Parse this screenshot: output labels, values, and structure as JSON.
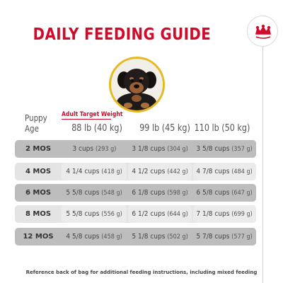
{
  "title": "DAILY FEEDING GUIDE",
  "logo": {
    "name": "royal-canin-crown-icon",
    "color": "#d10a2a"
  },
  "photo": {
    "name": "puppy-photo",
    "ring_color": "#e8b820"
  },
  "table": {
    "puppy_age_label_line1": "Puppy",
    "puppy_age_label_line2": "Age",
    "target_weight_label": "Adult Target Weight",
    "columns": [
      "88 lb (40 kg)",
      "99 lb (45 kg)",
      "110 lb (50 kg)"
    ],
    "rows": [
      {
        "age": "2 MOS",
        "cells": [
          {
            "main": "3 cups",
            "unit": "(293 g)"
          },
          {
            "main": "3 1/8 cups",
            "unit": "(304 g)"
          },
          {
            "main": "3 5/8 cups",
            "unit": "(357 g)"
          }
        ]
      },
      {
        "age": "4 MOS",
        "cells": [
          {
            "main": "4 1/4 cups",
            "unit": "(418 g)"
          },
          {
            "main": "4 1/2 cups",
            "unit": "(442 g)"
          },
          {
            "main": "4 7/8 cups",
            "unit": "(484 g)"
          }
        ]
      },
      {
        "age": "6 MOS",
        "cells": [
          {
            "main": "5 5/8 cups",
            "unit": "(548 g)"
          },
          {
            "main": "6 1/8 cups",
            "unit": "(598 g)"
          },
          {
            "main": "6 5/8 cups",
            "unit": "(647 g)"
          }
        ]
      },
      {
        "age": "8 MOS",
        "cells": [
          {
            "main": "5 5/8 cups",
            "unit": "(556 g)"
          },
          {
            "main": "6 1/2 cups",
            "unit": "(644 g)"
          },
          {
            "main": "7 1/8 cups",
            "unit": "(699 g)"
          }
        ]
      },
      {
        "age": "12 MOS",
        "cells": [
          {
            "main": "4 5/8 cups",
            "unit": "(458 g)"
          },
          {
            "main": "5 1/8 cups",
            "unit": "(502 g)"
          },
          {
            "main": "5 7/8 cups",
            "unit": "(577 g)"
          }
        ]
      }
    ]
  },
  "footnote": "Reference back of bag for additional feeding instructions, including mixed feeding",
  "colors": {
    "accent": "#d10a2a",
    "row_dark": "#bdbdbd",
    "row_light": "#e4e4e4"
  }
}
